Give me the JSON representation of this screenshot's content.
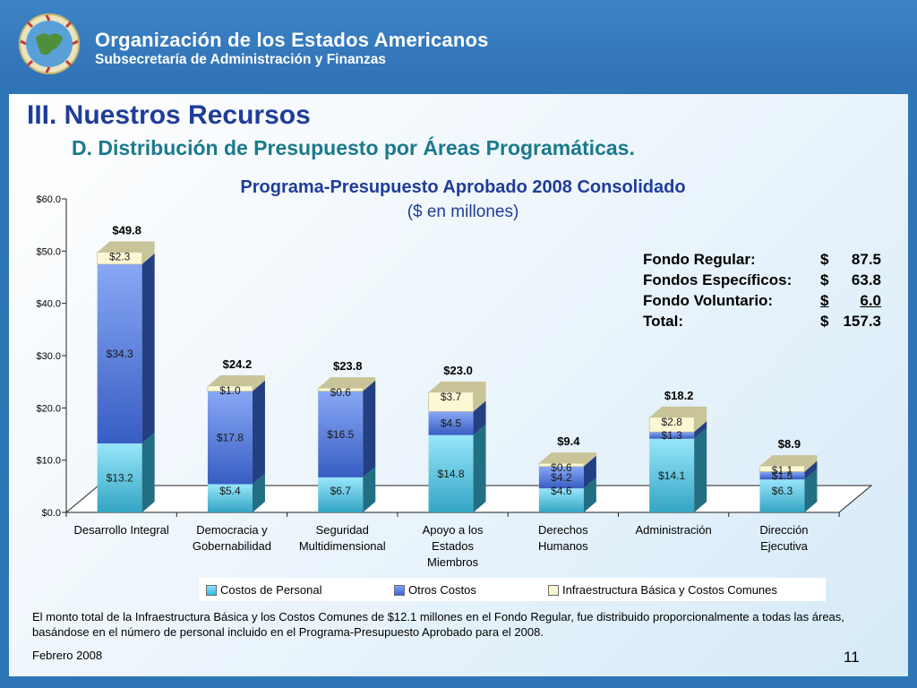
{
  "header": {
    "org_name": "Organización de los Estados Americanos",
    "org_sub": "Subsecretaría de Administración y Finanzas"
  },
  "slide": {
    "title": "III. Nuestros Recursos",
    "subtitle": "D. Distribución de Presupuesto por Áreas Programáticas.",
    "footer_date": "Febrero 2008",
    "page_number": "11",
    "note": "El monto total de la Infraestructura Básica y los Costos Comunes de $12.1 millones en el Fondo Regular, fue distribuido proporcionalmente a todas las áreas, basándose en el número de personal incluido en el Programa-Presupuesto Aprobado para el 2008."
  },
  "funds": {
    "rows": [
      {
        "label": "Fondo Regular:",
        "currency": "$",
        "value": "87.5"
      },
      {
        "label": "Fondos Específicos:",
        "currency": "$",
        "value": "63.8"
      },
      {
        "label": "Fondo Voluntario:",
        "currency": "$",
        "value": "6.0"
      },
      {
        "label": "Total:",
        "currency": "$",
        "value": "157.3"
      }
    ]
  },
  "chart_data": {
    "type": "bar",
    "stacked": true,
    "title": "Programa-Presupuesto Aprobado 2008 Consolidado",
    "subtitle": "($ en millones)",
    "categories": [
      [
        "Desarrollo Integral"
      ],
      [
        "Democracia y",
        "Gobernabilidad"
      ],
      [
        "Seguridad",
        "Multidimensional"
      ],
      [
        "Apoyo a los",
        "Estados",
        "Miembros"
      ],
      [
        "Derechos",
        "Humanos"
      ],
      [
        "Administración"
      ],
      [
        "Dirección",
        "Ejecutiva"
      ]
    ],
    "series": [
      {
        "name": "Costos de Personal",
        "values": [
          13.2,
          5.4,
          6.7,
          14.8,
          4.6,
          14.1,
          6.3
        ],
        "labels": [
          "$13.2",
          "$5.4",
          "$6.7",
          "$14.8",
          "$4.6",
          "$14.1",
          "$6.3"
        ],
        "color": "#3ec9ee"
      },
      {
        "name": "Otros Costos",
        "values": [
          34.3,
          17.8,
          16.5,
          4.5,
          4.2,
          1.3,
          1.5
        ],
        "labels": [
          "$34.3",
          "$17.8",
          "$16.5",
          "$4.5",
          "$4.2",
          "$1.3",
          "$1.5"
        ],
        "color": "#4472ee"
      },
      {
        "name": "Infraestructura Básica y Costos Comunes",
        "values": [
          2.3,
          1.0,
          0.6,
          3.7,
          0.6,
          2.8,
          1.1
        ],
        "labels": [
          "$2.3",
          "$1.0",
          "$0.6",
          "$3.7",
          "$0.6",
          "$2.8",
          "$1.1"
        ],
        "color": "#fbf8d4"
      }
    ],
    "totals": [
      "$49.8",
      "$24.2",
      "$23.8",
      "$23.0",
      "$9.4",
      "$18.2",
      "$8.9"
    ],
    "y_ticks": [
      "$0.0",
      "$10.0",
      "$20.0",
      "$30.0",
      "$40.0",
      "$50.0",
      "$60.0"
    ],
    "ylim": [
      0,
      60
    ],
    "legend_position": "bottom"
  }
}
